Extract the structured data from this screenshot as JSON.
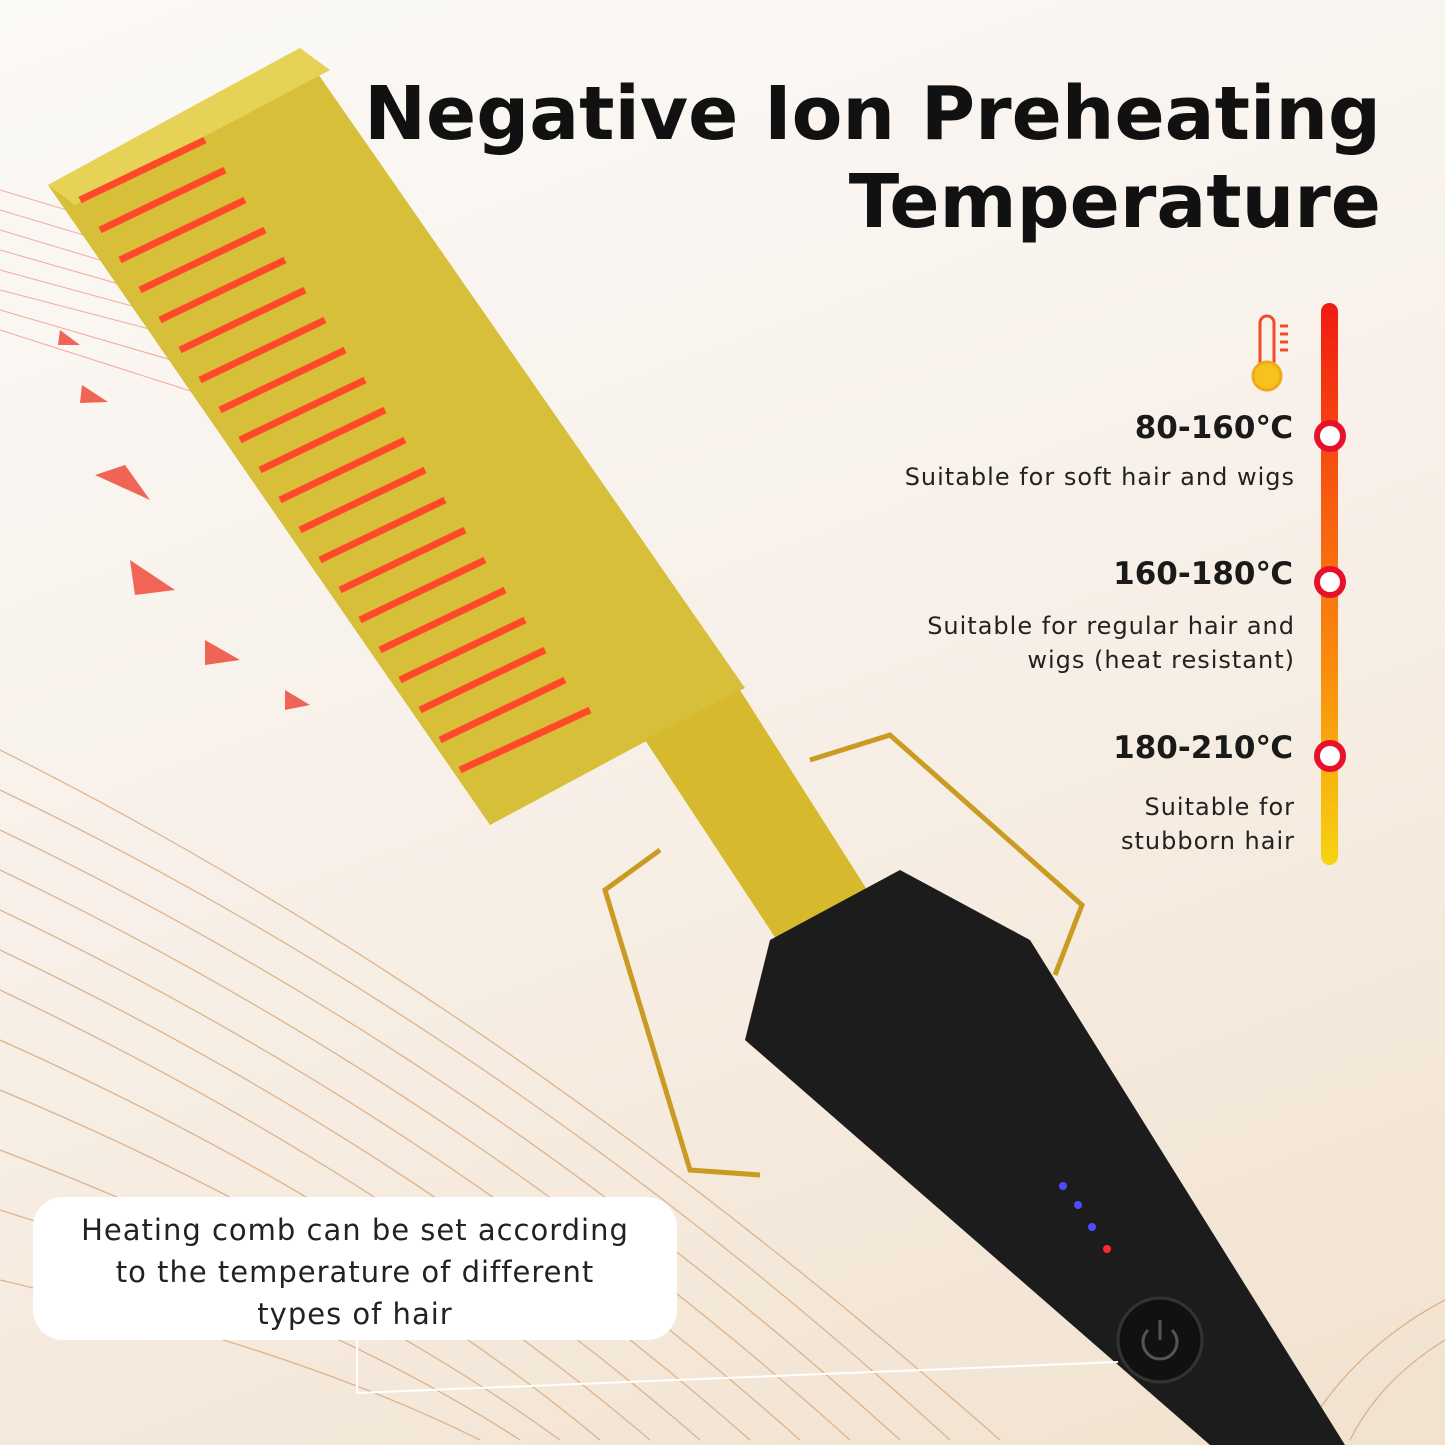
{
  "title": {
    "line1": "Negative Ion Preheating",
    "line2": "Temperature"
  },
  "temperature_scale": {
    "icon": "thermometer-icon",
    "levels": [
      {
        "range": "80-160℃",
        "description": "Suitable for soft hair and wigs"
      },
      {
        "range": "160-180℃",
        "description_line1": "Suitable for regular hair and",
        "description_line2": "wigs (heat resistant)"
      },
      {
        "range": "180-210℃",
        "description_line1": "Suitable for",
        "description_line2": "stubborn hair"
      }
    ],
    "colors": {
      "top": "#f01b12",
      "middle": "#f98d0c",
      "bottom": "#f7d311",
      "marker": "#e8102a"
    }
  },
  "callout": {
    "line1": "Heating comb can be set according",
    "line2": "to the temperature of different",
    "line3": "types of hair"
  },
  "product": {
    "name_icon": "hot-comb",
    "indicator_leds": [
      "blue",
      "blue",
      "blue",
      "red"
    ],
    "power_icon": "power-icon"
  }
}
